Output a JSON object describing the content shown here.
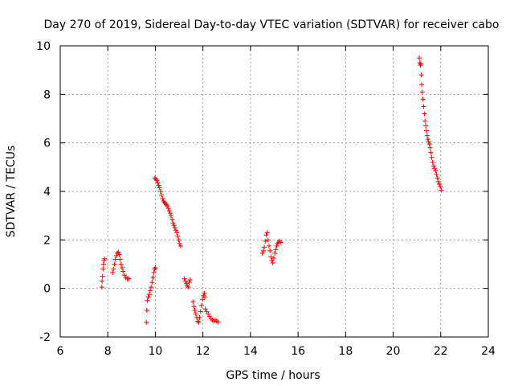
{
  "chart_data": {
    "type": "scatter",
    "title": "Day 270 of 2019, Sidereal Day-to-day VTEC variation (SDTVAR) for receiver cabo",
    "xlabel": "GPS time / hours",
    "ylabel": "SDTVAR / TECUs",
    "xlim": [
      6,
      24
    ],
    "ylim": [
      -2,
      10
    ],
    "xticks": [
      6,
      8,
      10,
      12,
      14,
      16,
      18,
      20,
      22,
      24
    ],
    "yticks": [
      -2,
      0,
      2,
      4,
      6,
      8,
      10
    ],
    "grid": true,
    "marker": "+",
    "color": "#ff0000",
    "segments": [
      [
        [
          7.75,
          0.05
        ],
        [
          7.76,
          0.3
        ],
        [
          7.78,
          0.5
        ],
        [
          7.8,
          0.8
        ],
        [
          7.82,
          1.0
        ],
        [
          7.84,
          1.15
        ],
        [
          7.86,
          1.22
        ]
      ],
      [
        [
          8.2,
          0.65
        ],
        [
          8.24,
          0.8
        ],
        [
          8.28,
          1.0
        ],
        [
          8.32,
          1.2
        ],
        [
          8.36,
          1.35
        ],
        [
          8.4,
          1.45
        ],
        [
          8.44,
          1.5
        ],
        [
          8.48,
          1.4
        ],
        [
          8.52,
          1.2
        ],
        [
          8.56,
          1.0
        ],
        [
          8.6,
          0.85
        ],
        [
          8.64,
          0.7
        ],
        [
          8.7,
          0.55
        ],
        [
          8.76,
          0.45
        ],
        [
          8.82,
          0.4
        ],
        [
          8.88,
          0.4
        ]
      ],
      [
        [
          9.62,
          -1.4
        ],
        [
          9.64,
          -0.9
        ],
        [
          9.66,
          -0.5
        ],
        [
          9.7,
          -0.35
        ],
        [
          9.74,
          -0.25
        ],
        [
          9.78,
          -0.1
        ],
        [
          9.82,
          0.05
        ],
        [
          9.86,
          0.25
        ],
        [
          9.9,
          0.45
        ],
        [
          9.94,
          0.65
        ],
        [
          9.97,
          0.8
        ],
        [
          10.0,
          0.85
        ]
      ],
      [
        [
          9.98,
          4.55
        ],
        [
          10.02,
          4.5
        ],
        [
          10.06,
          4.45
        ],
        [
          10.1,
          4.35
        ],
        [
          10.14,
          4.25
        ],
        [
          10.18,
          4.15
        ],
        [
          10.22,
          4.0
        ],
        [
          10.26,
          3.85
        ],
        [
          10.3,
          3.7
        ],
        [
          10.34,
          3.6
        ],
        [
          10.38,
          3.55
        ],
        [
          10.42,
          3.5
        ],
        [
          10.46,
          3.45
        ],
        [
          10.5,
          3.4
        ],
        [
          10.54,
          3.3
        ],
        [
          10.58,
          3.2
        ],
        [
          10.62,
          3.1
        ],
        [
          10.66,
          3.0
        ],
        [
          10.7,
          2.85
        ],
        [
          10.74,
          2.7
        ],
        [
          10.78,
          2.6
        ],
        [
          10.82,
          2.5
        ],
        [
          10.86,
          2.4
        ],
        [
          10.9,
          2.3
        ],
        [
          10.94,
          2.15
        ],
        [
          10.98,
          2.0
        ],
        [
          11.02,
          1.85
        ],
        [
          11.06,
          1.75
        ]
      ],
      [
        [
          11.22,
          0.4
        ],
        [
          11.26,
          0.3
        ],
        [
          11.3,
          0.2
        ],
        [
          11.34,
          0.1
        ],
        [
          11.38,
          0.05
        ],
        [
          11.42,
          0.25
        ],
        [
          11.46,
          0.35
        ]
      ],
      [
        [
          11.58,
          -0.55
        ],
        [
          11.62,
          -0.75
        ],
        [
          11.66,
          -0.9
        ],
        [
          11.7,
          -1.05
        ],
        [
          11.74,
          -1.2
        ],
        [
          11.78,
          -1.35
        ],
        [
          11.82,
          -1.4
        ],
        [
          11.86,
          -1.2
        ],
        [
          11.9,
          -0.95
        ],
        [
          11.94,
          -0.7
        ],
        [
          11.98,
          -0.45
        ],
        [
          12.02,
          -0.3
        ],
        [
          12.06,
          -0.2
        ],
        [
          12.08,
          -0.35
        ]
      ],
      [
        [
          12.1,
          -0.85
        ],
        [
          12.16,
          -0.95
        ],
        [
          12.22,
          -1.05
        ],
        [
          12.28,
          -1.15
        ],
        [
          12.34,
          -1.25
        ],
        [
          12.4,
          -1.3
        ],
        [
          12.46,
          -1.35
        ],
        [
          12.52,
          -1.3
        ],
        [
          12.58,
          -1.35
        ],
        [
          12.64,
          -1.4
        ]
      ],
      [
        [
          14.5,
          1.45
        ],
        [
          14.54,
          1.55
        ],
        [
          14.58,
          1.7
        ],
        [
          14.62,
          1.95
        ],
        [
          14.66,
          2.2
        ],
        [
          14.7,
          2.3
        ],
        [
          14.74,
          2.0
        ],
        [
          14.78,
          1.75
        ],
        [
          14.82,
          1.55
        ],
        [
          14.86,
          1.3
        ],
        [
          14.9,
          1.15
        ],
        [
          14.94,
          1.05
        ],
        [
          14.98,
          1.25
        ],
        [
          15.02,
          1.45
        ],
        [
          15.06,
          1.6
        ],
        [
          15.1,
          1.75
        ],
        [
          15.14,
          1.85
        ],
        [
          15.18,
          1.9
        ],
        [
          15.22,
          1.95
        ],
        [
          15.28,
          1.9
        ]
      ],
      [
        [
          21.1,
          9.5
        ],
        [
          21.12,
          9.3
        ],
        [
          21.14,
          9.2
        ],
        [
          21.16,
          9.25
        ],
        [
          21.18,
          8.8
        ],
        [
          21.2,
          8.4
        ],
        [
          21.22,
          8.1
        ],
        [
          21.25,
          7.8
        ],
        [
          21.28,
          7.5
        ],
        [
          21.31,
          7.2
        ],
        [
          21.34,
          6.9
        ],
        [
          21.37,
          6.7
        ],
        [
          21.4,
          6.5
        ],
        [
          21.43,
          6.3
        ],
        [
          21.46,
          6.15
        ],
        [
          21.49,
          6.05
        ],
        [
          21.52,
          5.95
        ],
        [
          21.55,
          5.8
        ],
        [
          21.58,
          5.6
        ],
        [
          21.62,
          5.4
        ],
        [
          21.66,
          5.2
        ],
        [
          21.7,
          5.05
        ],
        [
          21.74,
          4.95
        ],
        [
          21.78,
          4.85
        ],
        [
          21.82,
          4.7
        ],
        [
          21.86,
          4.55
        ],
        [
          21.9,
          4.4
        ],
        [
          21.94,
          4.3
        ],
        [
          21.98,
          4.2
        ],
        [
          22.02,
          4.05
        ]
      ]
    ]
  }
}
